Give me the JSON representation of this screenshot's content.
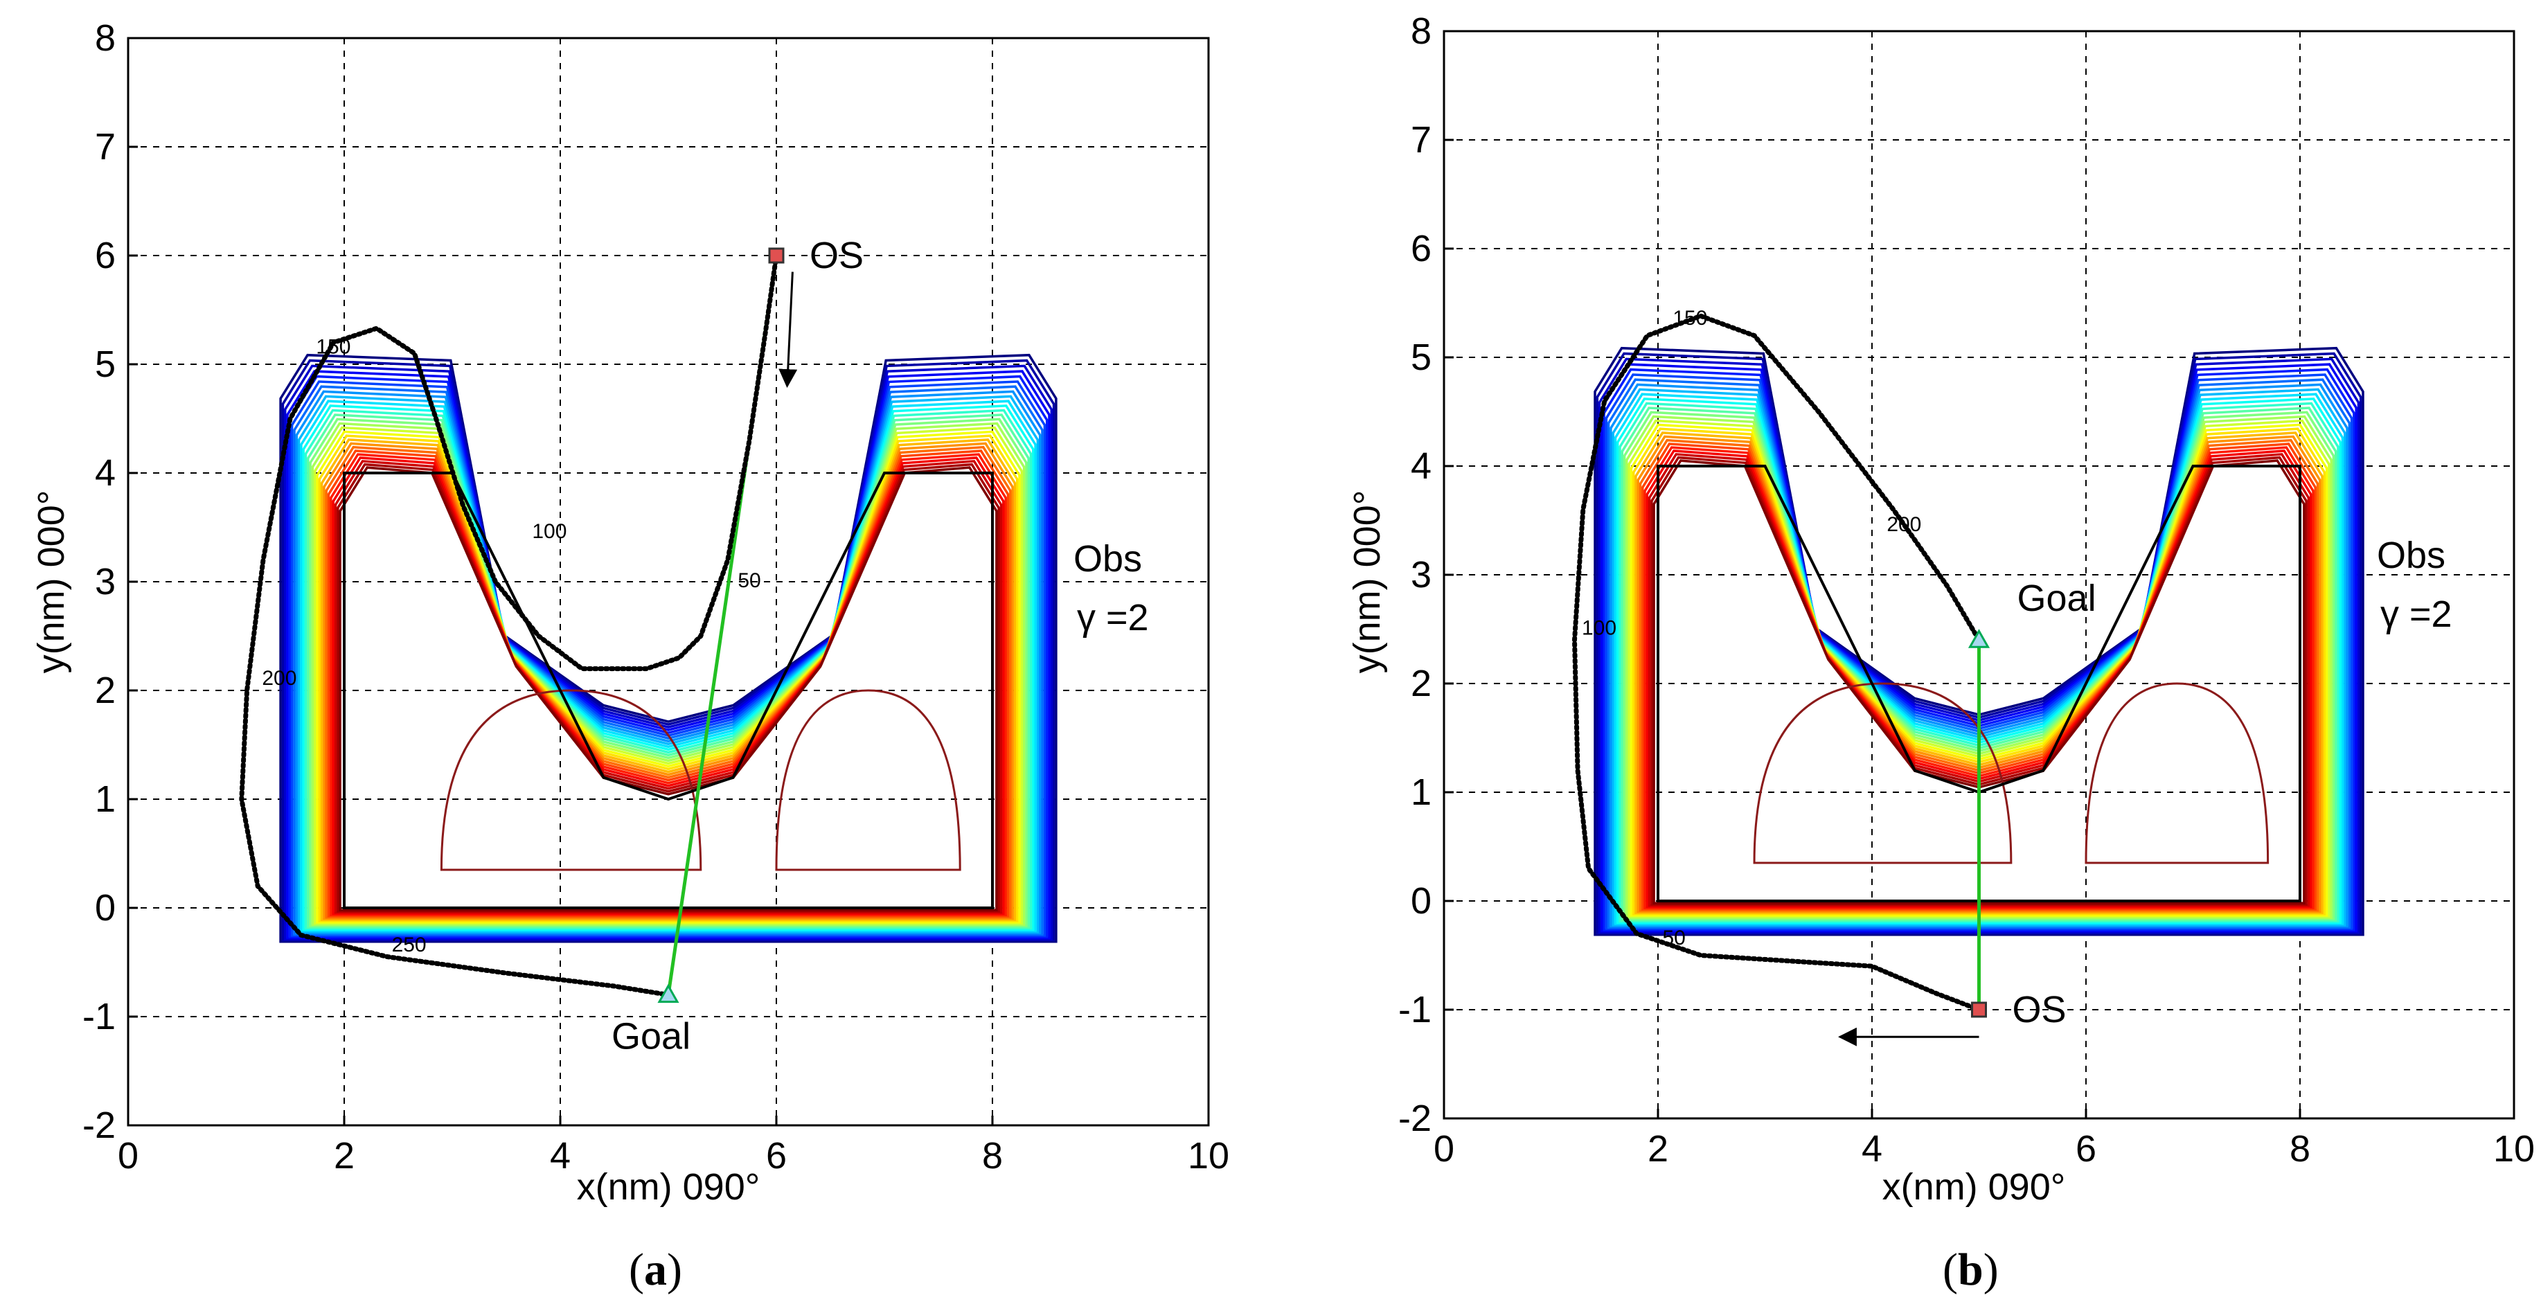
{
  "chart_data": [
    {
      "id": "a",
      "type": "contour",
      "caption_letter": "a",
      "xlabel": "x(nm) 090°",
      "ylabel": "y(nm) 000°",
      "xlim": [
        0,
        10
      ],
      "ylim": [
        -2,
        8
      ],
      "xticks": [
        "0",
        "2",
        "4",
        "6",
        "8",
        "10"
      ],
      "yticks": [
        "-2",
        "-1",
        "0",
        "1",
        "2",
        "3",
        "4",
        "5",
        "6",
        "7",
        "8"
      ],
      "grid": true,
      "start": {
        "label": "OS",
        "x": 6,
        "y": 6
      },
      "goal": {
        "label": "Goal",
        "x": 5,
        "y": -0.8
      },
      "obstacle_label": "Obs",
      "gamma_label": "γ =2",
      "direct_line": [
        [
          6,
          6
        ],
        [
          5,
          -0.8
        ]
      ],
      "trajectory": [
        [
          6.0,
          6.0
        ],
        [
          5.9,
          5.3
        ],
        [
          5.75,
          4.3
        ],
        [
          5.55,
          3.2
        ],
        [
          5.3,
          2.5
        ],
        [
          5.1,
          2.3
        ],
        [
          4.8,
          2.2
        ],
        [
          4.2,
          2.2
        ],
        [
          3.8,
          2.5
        ],
        [
          3.4,
          3.0
        ],
        [
          3.1,
          3.7
        ],
        [
          2.85,
          4.5
        ],
        [
          2.65,
          5.1
        ],
        [
          2.3,
          5.33
        ],
        [
          1.9,
          5.2
        ],
        [
          1.5,
          4.5
        ],
        [
          1.25,
          3.2
        ],
        [
          1.1,
          2.0
        ],
        [
          1.05,
          1.0
        ],
        [
          1.2,
          0.2
        ],
        [
          1.6,
          -0.25
        ],
        [
          2.4,
          -0.45
        ],
        [
          3.5,
          -0.6
        ],
        [
          4.5,
          -0.72
        ],
        [
          5.0,
          -0.8
        ]
      ],
      "contour_labels": [
        {
          "text": "150",
          "x": 1.9,
          "y": 5.1
        },
        {
          "text": "100",
          "x": 3.9,
          "y": 3.4
        },
        {
          "text": "50",
          "x": 5.75,
          "y": 2.95
        },
        {
          "text": "200",
          "x": 1.4,
          "y": 2.05
        },
        {
          "text": "250",
          "x": 2.6,
          "y": -0.4
        }
      ],
      "motion_arrow": {
        "from": [
          6.15,
          5.85
        ],
        "to": [
          6.1,
          4.8
        ]
      }
    },
    {
      "id": "b",
      "type": "contour",
      "caption_letter": "b",
      "xlabel": "x(nm) 090°",
      "ylabel": "y(nm) 000°",
      "xlim": [
        0,
        10
      ],
      "ylim": [
        -2,
        8
      ],
      "xticks": [
        "0",
        "2",
        "4",
        "6",
        "8",
        "10"
      ],
      "yticks": [
        "-2",
        "-1",
        "0",
        "1",
        "2",
        "3",
        "4",
        "5",
        "6",
        "7",
        "8"
      ],
      "grid": true,
      "start": {
        "label": "OS",
        "x": 5,
        "y": -1
      },
      "goal": {
        "label": "Goal",
        "x": 5,
        "y": 2.4
      },
      "obstacle_label": "Obs",
      "gamma_label": "γ =2",
      "direct_line": [
        [
          5,
          -1
        ],
        [
          5,
          2.4
        ]
      ],
      "trajectory": [
        [
          5.0,
          -1.0
        ],
        [
          4.6,
          -0.85
        ],
        [
          4.0,
          -0.6
        ],
        [
          3.2,
          -0.55
        ],
        [
          2.4,
          -0.5
        ],
        [
          1.8,
          -0.3
        ],
        [
          1.35,
          0.3
        ],
        [
          1.25,
          1.2
        ],
        [
          1.22,
          2.4
        ],
        [
          1.3,
          3.6
        ],
        [
          1.5,
          4.6
        ],
        [
          1.9,
          5.2
        ],
        [
          2.4,
          5.38
        ],
        [
          2.9,
          5.2
        ],
        [
          3.5,
          4.5
        ],
        [
          4.2,
          3.6
        ],
        [
          4.7,
          2.9
        ],
        [
          5.0,
          2.4
        ]
      ],
      "contour_labels": [
        {
          "text": "150",
          "x": 2.3,
          "y": 5.3
        },
        {
          "text": "200",
          "x": 4.3,
          "y": 3.4
        },
        {
          "text": "100",
          "x": 1.45,
          "y": 2.45
        },
        {
          "text": "50",
          "x": 2.15,
          "y": -0.4
        }
      ],
      "motion_arrow": {
        "from": [
          5.0,
          -1.25
        ],
        "to": [
          3.7,
          -1.25
        ]
      }
    }
  ]
}
